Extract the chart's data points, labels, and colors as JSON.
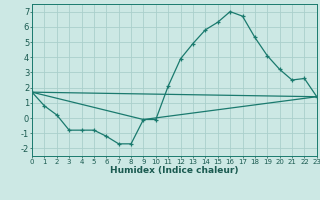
{
  "title": "",
  "xlabel": "Humidex (Indice chaleur)",
  "background_color": "#cce8e4",
  "grid_color": "#aacfcc",
  "line_color": "#1a7a6e",
  "series1_x": [
    0,
    1,
    2,
    3,
    4,
    5,
    6,
    7,
    8,
    9,
    10,
    11,
    12,
    13,
    14,
    15,
    16,
    17,
    18,
    19,
    20,
    21,
    22,
    23
  ],
  "series1_y": [
    1.7,
    0.8,
    0.2,
    -0.8,
    -0.8,
    -0.8,
    -1.2,
    -1.7,
    -1.7,
    -0.1,
    -0.1,
    2.1,
    3.9,
    4.9,
    5.8,
    6.3,
    7.0,
    6.7,
    5.3,
    4.1,
    3.2,
    2.5,
    2.6,
    1.4
  ],
  "series2_x": [
    0,
    23
  ],
  "series2_y": [
    1.7,
    1.4
  ],
  "series3_x": [
    0,
    9,
    23
  ],
  "series3_y": [
    1.7,
    -0.1,
    1.4
  ],
  "xlim": [
    0,
    23
  ],
  "ylim": [
    -2.5,
    7.5
  ],
  "yticks": [
    -2,
    -1,
    0,
    1,
    2,
    3,
    4,
    5,
    6,
    7
  ],
  "xticks": [
    0,
    1,
    2,
    3,
    4,
    5,
    6,
    7,
    8,
    9,
    10,
    11,
    12,
    13,
    14,
    15,
    16,
    17,
    18,
    19,
    20,
    21,
    22,
    23
  ],
  "xlabel_fontsize": 6.5,
  "tick_fontsize_x": 5.0,
  "tick_fontsize_y": 6.0
}
